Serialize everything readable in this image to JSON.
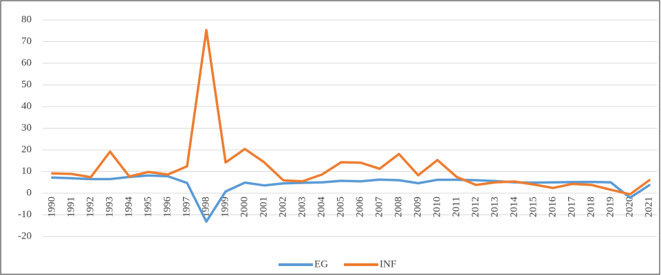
{
  "chart_data": {
    "type": "line",
    "categories": [
      "1990",
      "1991",
      "1992",
      "1993",
      "1994",
      "1995",
      "1996",
      "1997",
      "1998",
      "1999",
      "2000",
      "2001",
      "2002",
      "2003",
      "2004",
      "2005",
      "2006",
      "2007",
      "2008",
      "2009",
      "2010",
      "2011",
      "2012",
      "2013",
      "2014",
      "2015",
      "2016",
      "2017",
      "2018",
      "2019",
      "2020",
      "2021"
    ],
    "series": [
      {
        "name": "EG",
        "color": "#5b9bd5",
        "values": [
          7.2,
          6.9,
          6.5,
          6.5,
          7.5,
          8.2,
          7.8,
          4.7,
          -13.1,
          0.8,
          4.9,
          3.6,
          4.5,
          4.8,
          5.0,
          5.7,
          5.5,
          6.3,
          6.0,
          4.6,
          6.2,
          6.2,
          6.0,
          5.6,
          5.0,
          4.9,
          5.0,
          5.1,
          5.2,
          5.0,
          -2.1,
          3.7
        ]
      },
      {
        "name": "INF",
        "color": "#ed7d31",
        "values": [
          9.1,
          8.9,
          7.4,
          19.2,
          7.7,
          9.8,
          8.6,
          12.4,
          75.3,
          14.2,
          20.4,
          14.3,
          5.9,
          5.5,
          8.6,
          14.3,
          14.1,
          11.3,
          18.1,
          8.3,
          15.3,
          7.5,
          3.8,
          5.0,
          5.4,
          4.0,
          2.4,
          4.3,
          3.8,
          1.6,
          -0.5,
          6.0
        ]
      }
    ],
    "ylim": [
      -20,
      80
    ],
    "yticks": [
      -20,
      -10,
      0,
      10,
      20,
      30,
      40,
      50,
      60,
      70,
      80
    ],
    "grid": true
  }
}
